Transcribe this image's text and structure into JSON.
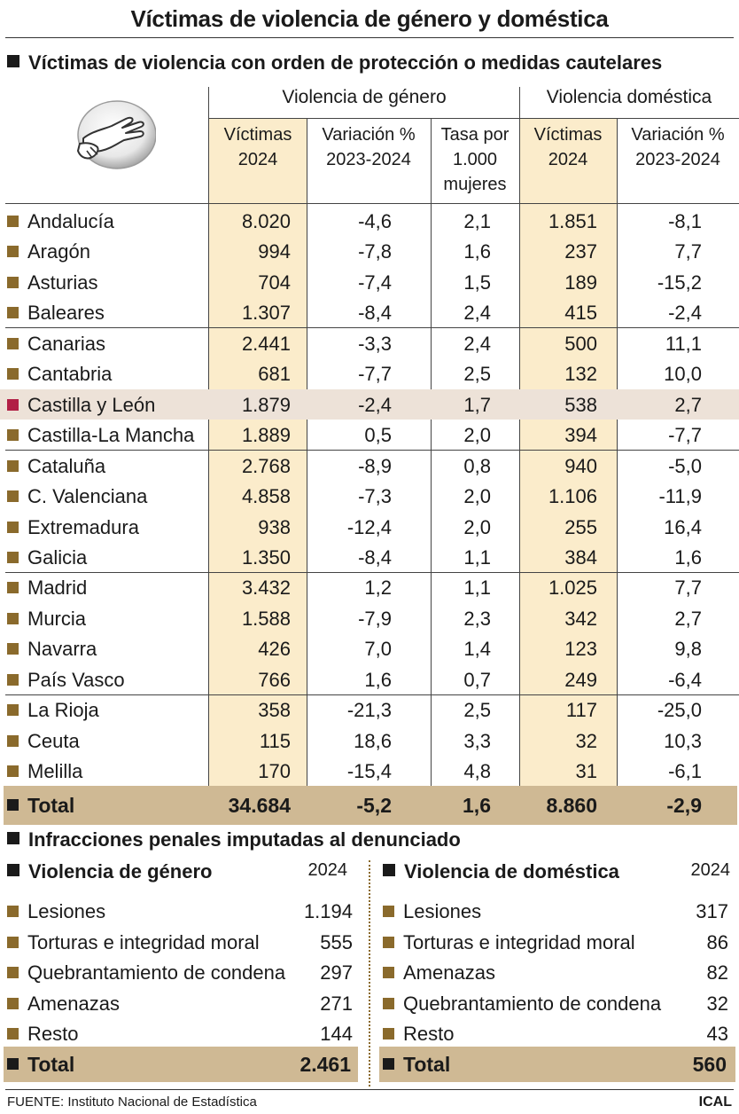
{
  "title": "Víctimas de violencia de género y doméstica",
  "section1_title": "Víctimas de violencia con orden de protección o medidas cautelares",
  "groups": {
    "gender": "Violencia de género",
    "domestic": "Violencia doméstica"
  },
  "column_headers": [
    [
      "Víctimas",
      "2024"
    ],
    [
      "Variación %",
      "2023-2024"
    ],
    [
      "Tasa por",
      "1.000",
      "mujeres"
    ],
    [
      "Víctimas",
      "2024"
    ],
    [
      "Variación %",
      "2023-2024"
    ]
  ],
  "rows": [
    {
      "region": "Andalucía",
      "vg_victimas": "8.020",
      "vg_var": "-4,6",
      "vg_tasa": "2,1",
      "vd_victimas": "1.851",
      "vd_var": "-8,1"
    },
    {
      "region": "Aragón",
      "vg_victimas": "994",
      "vg_var": "-7,8",
      "vg_tasa": "1,6",
      "vd_victimas": "237",
      "vd_var": "7,7"
    },
    {
      "region": "Asturias",
      "vg_victimas": "704",
      "vg_var": "-7,4",
      "vg_tasa": "1,5",
      "vd_victimas": "189",
      "vd_var": "-15,2"
    },
    {
      "region": "Baleares",
      "vg_victimas": "1.307",
      "vg_var": "-8,4",
      "vg_tasa": "2,4",
      "vd_victimas": "415",
      "vd_var": "-2,4"
    },
    {
      "region": "Canarias",
      "vg_victimas": "2.441",
      "vg_var": "-3,3",
      "vg_tasa": "2,4",
      "vd_victimas": "500",
      "vd_var": "11,1"
    },
    {
      "region": "Cantabria",
      "vg_victimas": "681",
      "vg_var": "-7,7",
      "vg_tasa": "2,5",
      "vd_victimas": "132",
      "vd_var": "10,0"
    },
    {
      "region": "Castilla y León",
      "vg_victimas": "1.879",
      "vg_var": "-2,4",
      "vg_tasa": "1,7",
      "vd_victimas": "538",
      "vd_var": "2,7",
      "highlight": true
    },
    {
      "region": "Castilla-La Mancha",
      "vg_victimas": "1.889",
      "vg_var": "0,5",
      "vg_tasa": "2,0",
      "vd_victimas": "394",
      "vd_var": "-7,7"
    },
    {
      "region": "Cataluña",
      "vg_victimas": "2.768",
      "vg_var": "-8,9",
      "vg_tasa": "0,8",
      "vd_victimas": "940",
      "vd_var": "-5,0"
    },
    {
      "region": "C. Valenciana",
      "vg_victimas": "4.858",
      "vg_var": "-7,3",
      "vg_tasa": "2,0",
      "vd_victimas": "1.106",
      "vd_var": "-11,9"
    },
    {
      "region": "Extremadura",
      "vg_victimas": "938",
      "vg_var": "-12,4",
      "vg_tasa": "2,0",
      "vd_victimas": "255",
      "vd_var": "16,4"
    },
    {
      "region": "Galicia",
      "vg_victimas": "1.350",
      "vg_var": "-8,4",
      "vg_tasa": "1,1",
      "vd_victimas": "384",
      "vd_var": "1,6"
    },
    {
      "region": "Madrid",
      "vg_victimas": "3.432",
      "vg_var": "1,2",
      "vg_tasa": "1,1",
      "vd_victimas": "1.025",
      "vd_var": "7,7"
    },
    {
      "region": "Murcia",
      "vg_victimas": "1.588",
      "vg_var": "-7,9",
      "vg_tasa": "2,3",
      "vd_victimas": "342",
      "vd_var": "2,7"
    },
    {
      "region": "Navarra",
      "vg_victimas": "426",
      "vg_var": "7,0",
      "vg_tasa": "1,4",
      "vd_victimas": "123",
      "vd_var": "9,8"
    },
    {
      "region": "País Vasco",
      "vg_victimas": "766",
      "vg_var": "1,6",
      "vg_tasa": "0,7",
      "vd_victimas": "249",
      "vd_var": "-6,4"
    },
    {
      "region": "La Rioja",
      "vg_victimas": "358",
      "vg_var": "-21,3",
      "vg_tasa": "2,5",
      "vd_victimas": "117",
      "vd_var": "-25,0"
    },
    {
      "region": "Ceuta",
      "vg_victimas": "115",
      "vg_var": "18,6",
      "vg_tasa": "3,3",
      "vd_victimas": "32",
      "vd_var": "10,3"
    },
    {
      "region": "Melilla",
      "vg_victimas": "170",
      "vg_var": "-15,4",
      "vg_tasa": "4,8",
      "vd_victimas": "31",
      "vd_var": "-6,1"
    }
  ],
  "total": {
    "label": "Total",
    "vg_victimas": "34.684",
    "vg_var": "-5,2",
    "vg_tasa": "1,6",
    "vd_victimas": "8.860",
    "vd_var": "-2,9"
  },
  "section2_title": "Infracciones penales imputadas al denunciado",
  "gender_infractions": {
    "title": "Violencia de género",
    "year": "2024",
    "items": [
      {
        "label": "Lesiones",
        "value": "1.194"
      },
      {
        "label": "Torturas e integridad moral",
        "value": "555"
      },
      {
        "label": "Quebrantamiento de condena",
        "value": "297"
      },
      {
        "label": "Amenazas",
        "value": "271"
      },
      {
        "label": "Resto",
        "value": "144"
      }
    ],
    "total_label": "Total",
    "total_value": "2.461"
  },
  "domestic_infractions": {
    "title": "Violencia de doméstica",
    "year": "2024",
    "items": [
      {
        "label": "Lesiones",
        "value": "317"
      },
      {
        "label": "Torturas e integridad moral",
        "value": "86"
      },
      {
        "label": "Amenazas",
        "value": "82"
      },
      {
        "label": "Quebrantamiento de condena",
        "value": "32"
      },
      {
        "label": "Resto",
        "value": "43"
      }
    ],
    "total_label": "Total",
    "total_value": "560"
  },
  "source": "FUENTE: Instituto Nacional de Estadística",
  "brand": "ICAL",
  "colors": {
    "accent_column": "#fbeccb",
    "total_band": "#cfb994",
    "bullet": "#8a6a2c",
    "highlight_row": "#ede2d8",
    "highlight_bullet": "#b11f45"
  },
  "chart_data": {
    "type": "table",
    "title": "Víctimas de violencia con orden de protección o medidas cautelares",
    "columns": [
      "Víctimas 2024 (género)",
      "Variación % 2023-2024 (género)",
      "Tasa por 1.000 mujeres",
      "Víctimas 2024 (doméstica)",
      "Variación % 2023-2024 (doméstica)"
    ],
    "categories": [
      "Andalucía",
      "Aragón",
      "Asturias",
      "Baleares",
      "Canarias",
      "Cantabria",
      "Castilla y León",
      "Castilla-La Mancha",
      "Cataluña",
      "C. Valenciana",
      "Extremadura",
      "Galicia",
      "Madrid",
      "Murcia",
      "Navarra",
      "País Vasco",
      "La Rioja",
      "Ceuta",
      "Melilla",
      "Total"
    ],
    "series": [
      {
        "name": "Violencia de género - Víctimas 2024",
        "values": [
          8020,
          994,
          704,
          1307,
          2441,
          681,
          1879,
          1889,
          2768,
          4858,
          938,
          1350,
          3432,
          1588,
          426,
          766,
          358,
          115,
          170,
          34684
        ]
      },
      {
        "name": "Violencia de género - Variación % 2023-2024",
        "values": [
          -4.6,
          -7.8,
          -7.4,
          -8.4,
          -3.3,
          -7.7,
          -2.4,
          0.5,
          -8.9,
          -7.3,
          -12.4,
          -8.4,
          1.2,
          -7.9,
          7.0,
          1.6,
          -21.3,
          18.6,
          -15.4,
          -5.2
        ]
      },
      {
        "name": "Violencia de género - Tasa por 1.000 mujeres",
        "values": [
          2.1,
          1.6,
          1.5,
          2.4,
          2.4,
          2.5,
          1.7,
          2.0,
          0.8,
          2.0,
          2.0,
          1.1,
          1.1,
          2.3,
          1.4,
          0.7,
          2.5,
          3.3,
          4.8,
          1.6
        ]
      },
      {
        "name": "Violencia doméstica - Víctimas 2024",
        "values": [
          1851,
          237,
          189,
          415,
          500,
          132,
          538,
          394,
          940,
          1106,
          255,
          384,
          1025,
          342,
          123,
          249,
          117,
          32,
          31,
          8860
        ]
      },
      {
        "name": "Violencia doméstica - Variación % 2023-2024",
        "values": [
          -8.1,
          7.7,
          -15.2,
          -2.4,
          11.1,
          10.0,
          2.7,
          -7.7,
          -5.0,
          -11.9,
          16.4,
          1.6,
          7.7,
          2.7,
          9.8,
          -6.4,
          -25.0,
          10.3,
          -6.1,
          -2.9
        ]
      }
    ]
  }
}
